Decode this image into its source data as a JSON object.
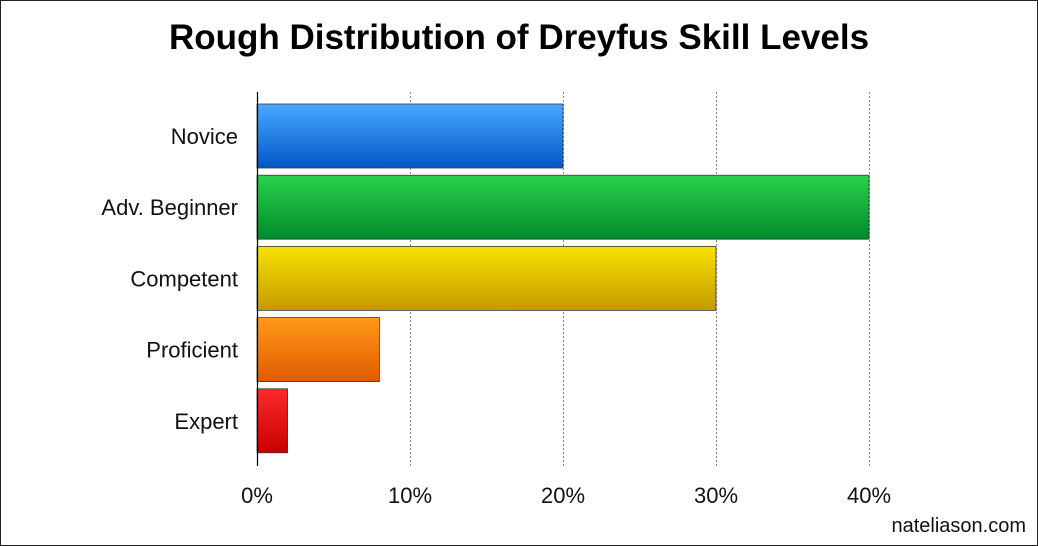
{
  "chart_data": {
    "type": "bar",
    "orientation": "horizontal",
    "title": "Rough Distribution of Dreyfus Skill Levels",
    "xlabel": "",
    "ylabel": "",
    "categories": [
      "Novice",
      "Adv. Beginner",
      "Competent",
      "Proficient",
      "Expert"
    ],
    "values": [
      20,
      40,
      30,
      8,
      2
    ],
    "unit": "%",
    "xlim": [
      0,
      40
    ],
    "x_ticks": [
      0,
      10,
      20,
      30,
      40
    ],
    "x_tick_labels": [
      "0%",
      "10%",
      "20%",
      "30%",
      "40%"
    ],
    "grid": "vertical dotted",
    "legend": "none",
    "bar_colors": [
      {
        "top": "#4aa8ff",
        "bottom": "#0058c8"
      },
      {
        "top": "#2ad24a",
        "bottom": "#008a2c"
      },
      {
        "top": "#f6e200",
        "bottom": "#c49a00"
      },
      {
        "top": "#ff9a1a",
        "bottom": "#e05a00"
      },
      {
        "top": "#ff2a2a",
        "bottom": "#c80000"
      }
    ]
  },
  "credit": "nateliason.com"
}
